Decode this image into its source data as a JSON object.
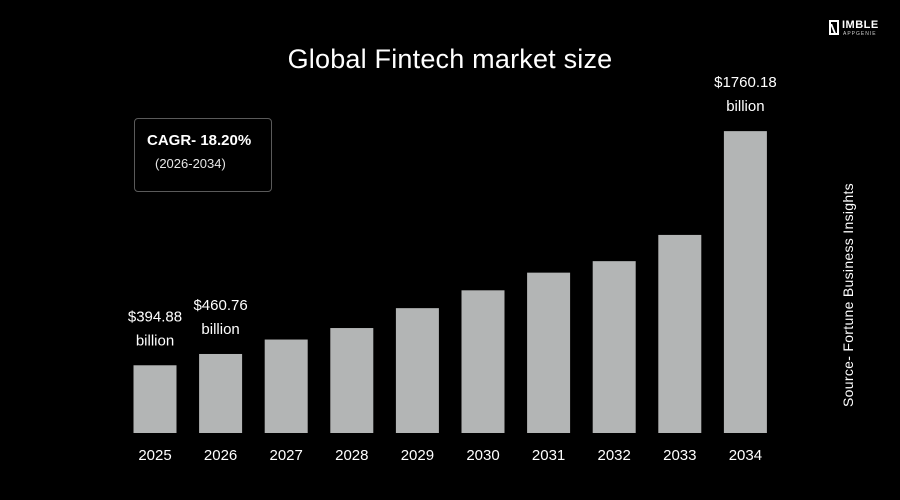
{
  "brand": {
    "logo_word": "IMBLE",
    "logo_sub": "APPGENIE",
    "logo_icon": "nimble-n-logo-icon"
  },
  "note": {
    "cagr": "CAGR- 18.20%",
    "period": "(2026-2034)"
  },
  "source": "Source- Fortune Business Insights",
  "colors": {
    "background": "#000000",
    "bar": "#b3b5b5",
    "text": "#ffffff"
  },
  "chart_data": {
    "type": "bar",
    "title": "Global Fintech market size",
    "xlabel": "",
    "ylabel": "",
    "categories": [
      "2025",
      "2026",
      "2027",
      "2028",
      "2029",
      "2030",
      "2031",
      "2032",
      "2033",
      "2034"
    ],
    "values": [
      394.88,
      460.76,
      545,
      612,
      728,
      832,
      935,
      1002,
      1155,
      1760.18
    ],
    "ylim": [
      0,
      2000
    ],
    "grid": false,
    "legend": "none",
    "data_labels": [
      {
        "index": 0,
        "line1": "$394.88",
        "line2": "billion"
      },
      {
        "index": 1,
        "line1": "$460.76",
        "line2": "billion"
      },
      {
        "index": 9,
        "line1": "$1760.18",
        "line2": "billion"
      }
    ]
  }
}
